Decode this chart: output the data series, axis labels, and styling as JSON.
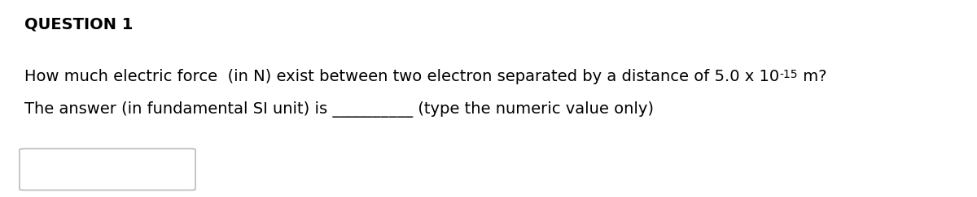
{
  "title": "QUESTION 1",
  "line1_main": "How much electric force  (in N) exist between two electron separated by a distance of 5.0 x 10",
  "line1_sup": "-15",
  "line1_end": " m?",
  "line2": "The answer (in fundamental SI unit) is __________ (type the numeric value only)",
  "background_color": "#ffffff",
  "text_color": "#000000",
  "title_fontsize": 14,
  "body_fontsize": 14,
  "sup_fontsize": 10,
  "font_family": "DejaVu Sans"
}
